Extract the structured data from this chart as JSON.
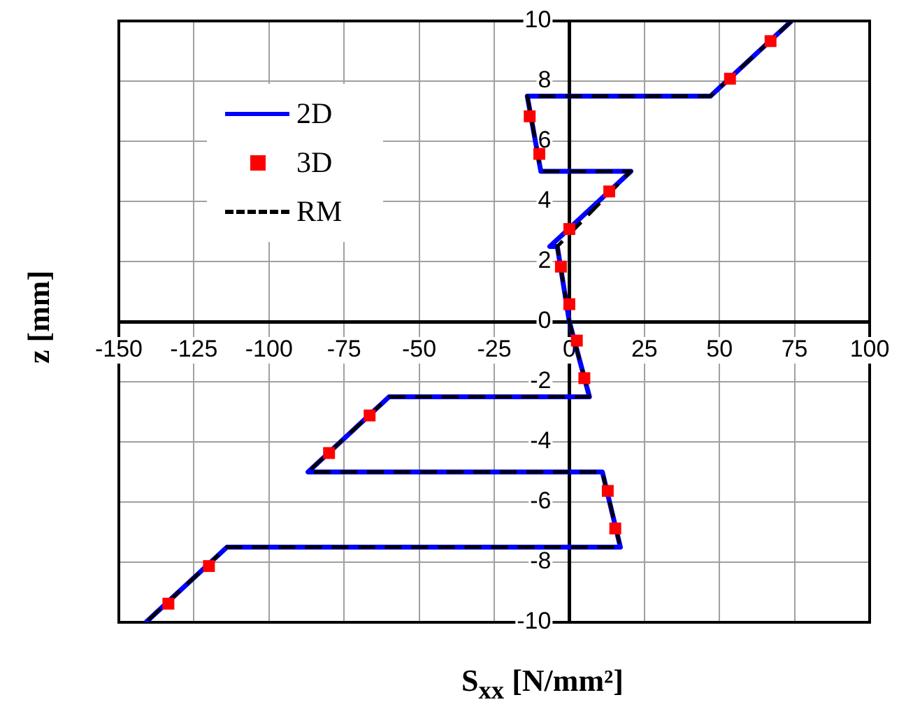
{
  "chart_data": {
    "type": "line",
    "xlabel": "S$_{xx}$  [N/mm²]",
    "ylabel": "z  [mm]",
    "xlim": [
      -150,
      100
    ],
    "xticks": [
      -150,
      -125,
      -100,
      -75,
      -50,
      -25,
      0,
      25,
      50,
      75,
      100
    ],
    "ylim": [
      -10,
      10
    ],
    "yticks": [
      -10,
      -8,
      -6,
      -4,
      -2,
      0,
      2,
      4,
      6,
      8,
      10
    ],
    "grid": true,
    "legend": "top left",
    "series": [
      {
        "name": "2D",
        "type": "line",
        "color": "#0000ff",
        "marker": "none",
        "line_style": "solid",
        "x": [
          74,
          47,
          -14,
          -9.5,
          20.5,
          -6.5,
          -4,
          0,
          6.7,
          -60,
          -87,
          11,
          17,
          -114,
          -141
        ],
        "values": [
          10,
          7.5,
          7.5,
          5,
          5,
          2.5,
          2.5,
          0,
          -2.5,
          -2.5,
          -5,
          -5,
          -7.5,
          -7.5,
          -10
        ]
      },
      {
        "name": "3D",
        "type": "scatter",
        "color": "#ff0000",
        "marker": "square",
        "x": [
          67,
          53.5,
          -13.2,
          -10,
          13.3,
          0,
          -2.8,
          0,
          2.5,
          5,
          -66.5,
          -80,
          12.8,
          15.3,
          -120,
          -133.5
        ],
        "values": [
          9.33,
          8.08,
          6.83,
          5.58,
          4.33,
          3.08,
          1.83,
          0.58,
          -0.63,
          -1.88,
          -3.12,
          -4.37,
          -5.63,
          -6.88,
          -8.13,
          -9.38
        ]
      },
      {
        "name": "RM",
        "type": "line",
        "color": "#000000",
        "marker": "none",
        "line_style": "dashed",
        "x": [
          74,
          47,
          -14,
          -9.5,
          20.5,
          -4,
          0,
          6.7,
          -60,
          -87,
          11,
          17,
          -114,
          -141
        ],
        "values": [
          10,
          7.5,
          7.5,
          5,
          5,
          2.5,
          0,
          -2.5,
          -2.5,
          -5,
          -5,
          -7.5,
          -7.5,
          -10
        ]
      }
    ]
  }
}
